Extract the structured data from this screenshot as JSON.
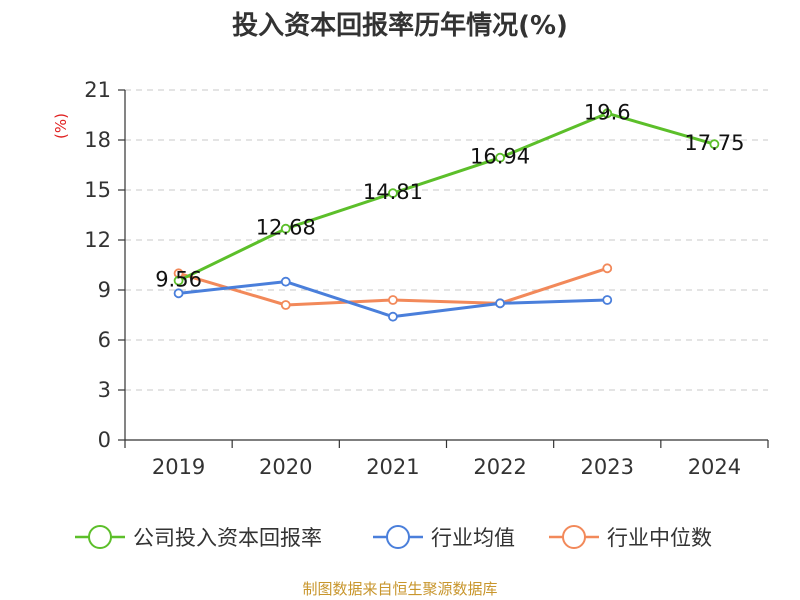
{
  "chart_data": {
    "type": "line",
    "title": "投入资本回报率历年情况(%)",
    "ylabel": "(%)",
    "xlabel": "",
    "categories": [
      "2019",
      "2020",
      "2021",
      "2022",
      "2023",
      "2024"
    ],
    "ylim": [
      0,
      21
    ],
    "yticks": [
      0,
      3,
      6,
      9,
      12,
      15,
      18,
      21
    ],
    "grid": true,
    "legend_position": "bottom",
    "series": [
      {
        "name": "公司投入资本回报率",
        "color": "#5cbf2a",
        "values": [
          9.56,
          12.68,
          14.81,
          16.94,
          19.6,
          17.75
        ],
        "labels": [
          "9.56",
          "12.68",
          "14.81",
          "16.94",
          "19.6",
          "17.75"
        ]
      },
      {
        "name": "行业均值",
        "color": "#4a7fdb",
        "values": [
          8.8,
          9.5,
          7.4,
          8.2,
          8.4,
          null
        ]
      },
      {
        "name": "行业中位数",
        "color": "#f2895a",
        "values": [
          10.0,
          8.1,
          8.4,
          8.2,
          10.3,
          null
        ]
      }
    ],
    "source": "制图数据来自恒生聚源数据库"
  }
}
